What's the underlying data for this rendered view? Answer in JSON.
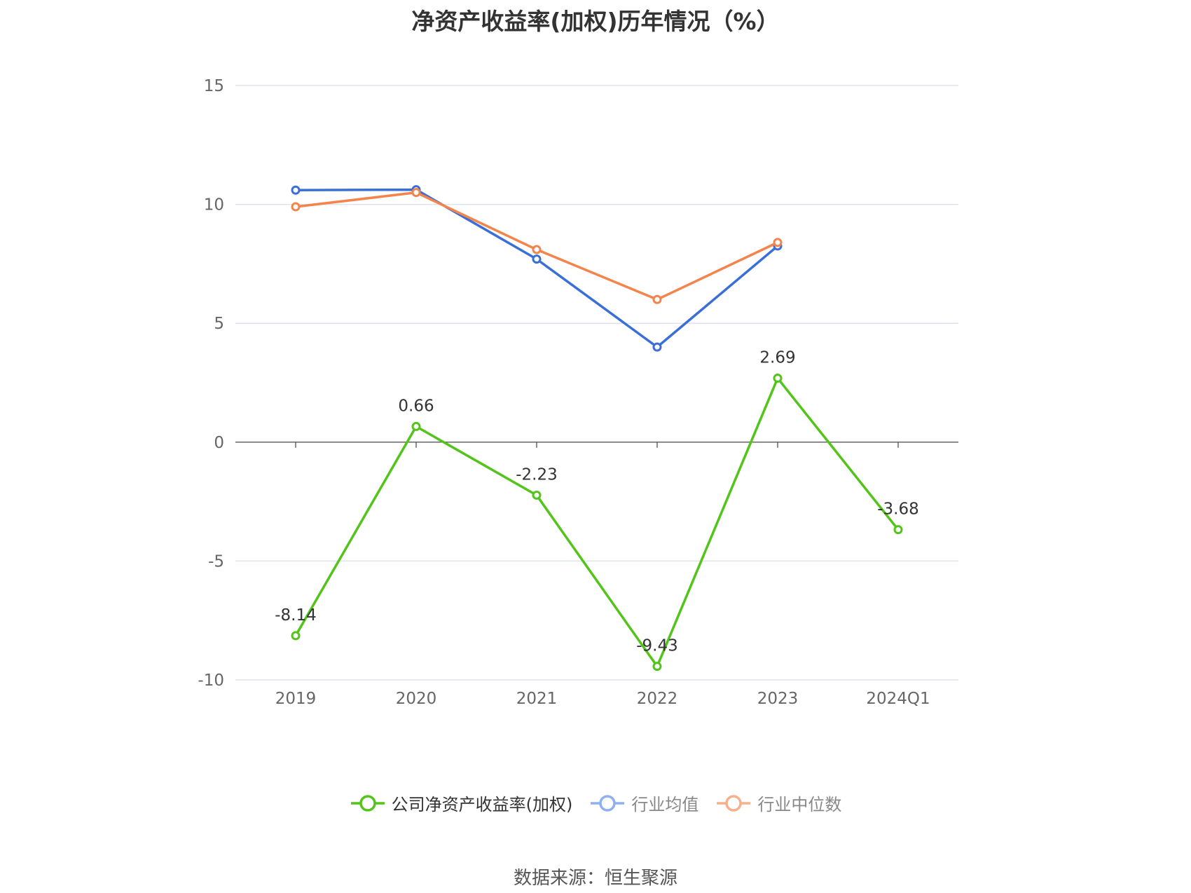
{
  "chart_data": {
    "type": "line",
    "title": "净资产收益率(加权)历年情况（%）",
    "categories": [
      "2019",
      "2020",
      "2021",
      "2022",
      "2023",
      "2024Q1"
    ],
    "ylim": [
      -10,
      15
    ],
    "yticks": [
      15,
      10,
      5,
      0,
      -5,
      -10
    ],
    "grid": true,
    "legend_position": "bottom",
    "series": [
      {
        "name": "公司净资产收益率(加权)",
        "color": "#52c41a",
        "values": [
          -8.14,
          0.66,
          -2.23,
          -9.43,
          2.69,
          -3.68
        ],
        "labels_shown": true,
        "legend_text_color": "#333333"
      },
      {
        "name": "行业均值",
        "color": "#3a6fd8",
        "values": [
          10.6,
          10.62,
          7.7,
          4.0,
          8.25,
          null
        ],
        "labels_shown": false,
        "legend_text_color": "#888888",
        "legend_color": "#8fb0ee"
      },
      {
        "name": "行业中位数",
        "color": "#f5844c",
        "values": [
          9.9,
          10.5,
          8.1,
          6.0,
          8.4,
          null
        ],
        "labels_shown": false,
        "legend_text_color": "#888888",
        "legend_color": "#f7b08c"
      }
    ]
  },
  "source": "数据来源：恒生聚源"
}
